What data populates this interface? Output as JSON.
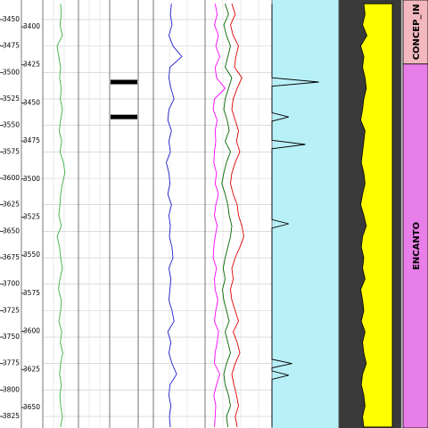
{
  "chart_data": {
    "type": "well-log",
    "ylim": [
      3431.5,
      3835.9
    ],
    "yticks": [
      3450,
      3475,
      3500,
      3525,
      3550,
      3575,
      3600,
      3625,
      3650,
      3675,
      3700,
      3725,
      3750,
      3775,
      3800,
      3825
    ],
    "y2lim": [
      3382.4,
      3663.5
    ],
    "y2ticks": [
      3400,
      3425,
      3450,
      3475,
      3500,
      3525,
      3550,
      3575,
      3600,
      3625,
      3650
    ],
    "depth": [
      3435,
      3445,
      3455,
      3465,
      3475,
      3485,
      3495,
      3505,
      3515,
      3525,
      3535,
      3545,
      3555,
      3565,
      3575,
      3585,
      3595,
      3605,
      3615,
      3625,
      3635,
      3645,
      3655,
      3665,
      3675,
      3685,
      3695,
      3705,
      3715,
      3725,
      3735,
      3745,
      3755,
      3765,
      3775,
      3785,
      3795,
      3805,
      3815,
      3825,
      3835
    ],
    "grid": true,
    "tracks": [
      {
        "xlim": [
          0,
          100
        ],
        "series": [
          {
            "color": "#3cb043",
            "values": [
              50,
              52,
              48,
              55,
              40,
              45,
              50,
              47,
              52,
              49,
              55,
              50,
              46,
              53,
              48,
              58,
              62,
              55,
              50,
              48,
              45,
              52,
              40,
              47,
              50,
              55,
              48,
              44,
              52,
              50,
              45,
              53,
              49,
              56,
              50,
              47,
              52,
              48,
              50,
              55,
              50
            ]
          }
        ]
      },
      {
        "xlim": [
          0,
          100
        ],
        "series": [
          {
            "color": "#2020d0",
            "values": [
              35,
              33,
              36,
              30,
              38,
              55,
              32,
              30,
              34,
              40,
              30,
              28,
              35,
              30,
              33,
              25,
              30,
              32,
              28,
              35,
              30,
              33,
              31,
              36,
              38,
              30,
              34,
              32,
              30,
              36,
              40,
              28,
              34,
              30,
              36,
              45,
              32,
              30,
              34,
              31,
              33
            ]
          }
        ]
      },
      {
        "xlim": [
          0,
          100
        ],
        "series": [
          {
            "color": "#ff00ff",
            "values": [
              15,
              18,
              14,
              20,
              16,
              22,
              15,
              17,
              30,
              14,
              12,
              18,
              15,
              16,
              14,
              13,
              17,
              15,
              20,
              16,
              14,
              18,
              15,
              13,
              12,
              17,
              14,
              15,
              19,
              16,
              14,
              20,
              18,
              15,
              14,
              22,
              17,
              13,
              16,
              15,
              14
            ]
          },
          {
            "color": "#e00000",
            "values": [
              40,
              45,
              38,
              42,
              50,
              46,
              44,
              55,
              48,
              42,
              40,
              45,
              50,
              47,
              52,
              45,
              40,
              38,
              42,
              48,
              50,
              55,
              58,
              52,
              45,
              40,
              42,
              38,
              40,
              45,
              50,
              42,
              48,
              52,
              45,
              40,
              43,
              47,
              50,
              45,
              48
            ]
          },
          {
            "color": "#006400",
            "values": [
              30,
              35,
              28,
              32,
              38,
              34,
              30,
              40,
              35,
              30,
              28,
              33,
              36,
              30,
              38,
              32,
              28,
              25,
              30,
              34,
              36,
              40,
              38,
              34,
              30,
              27,
              30,
              26,
              28,
              32,
              36,
              30,
              34,
              38,
              32,
              28,
              30,
              35,
              38,
              32,
              34
            ]
          }
        ]
      },
      {
        "xlim": [
          0,
          100
        ],
        "series": [
          {
            "color": "#000000",
            "x": [
              3435,
              3505,
              3509,
              3513,
              3538,
              3542,
              3546,
              3564,
              3568,
              3572,
              3639,
              3643,
              3647,
              3771,
              3775,
              3779,
              3782,
              3786,
              3790,
              3835
            ],
            "values": [
              0,
              0,
              70,
              0,
              0,
              25,
              0,
              0,
              50,
              0,
              0,
              25,
              0,
              0,
              30,
              0,
              0,
              25,
              0,
              0
            ]
          }
        ]
      },
      {
        "xlim": [
          0,
          100
        ],
        "series": [
          {
            "color": "#ffff00",
            "values": [
              40,
              42,
              38,
              45,
              35,
              40,
              38,
              42,
              44,
              40,
              38,
              35,
              42,
              40,
              38,
              36,
              40,
              42,
              38,
              35,
              40,
              44,
              38,
              36,
              40,
              38,
              42,
              35,
              38,
              40,
              36,
              42,
              38,
              40,
              44,
              38,
              36,
              40,
              42,
              38,
              40
            ]
          }
        ]
      }
    ],
    "markers": [
      3509,
      3542
    ],
    "zones": [
      {
        "name": "CONCEP_IN",
        "color": "#f4b8c0",
        "top": 3431.5
      },
      {
        "name": "ENCANTO",
        "color": "#e87ee8",
        "top": 3492
      }
    ]
  }
}
